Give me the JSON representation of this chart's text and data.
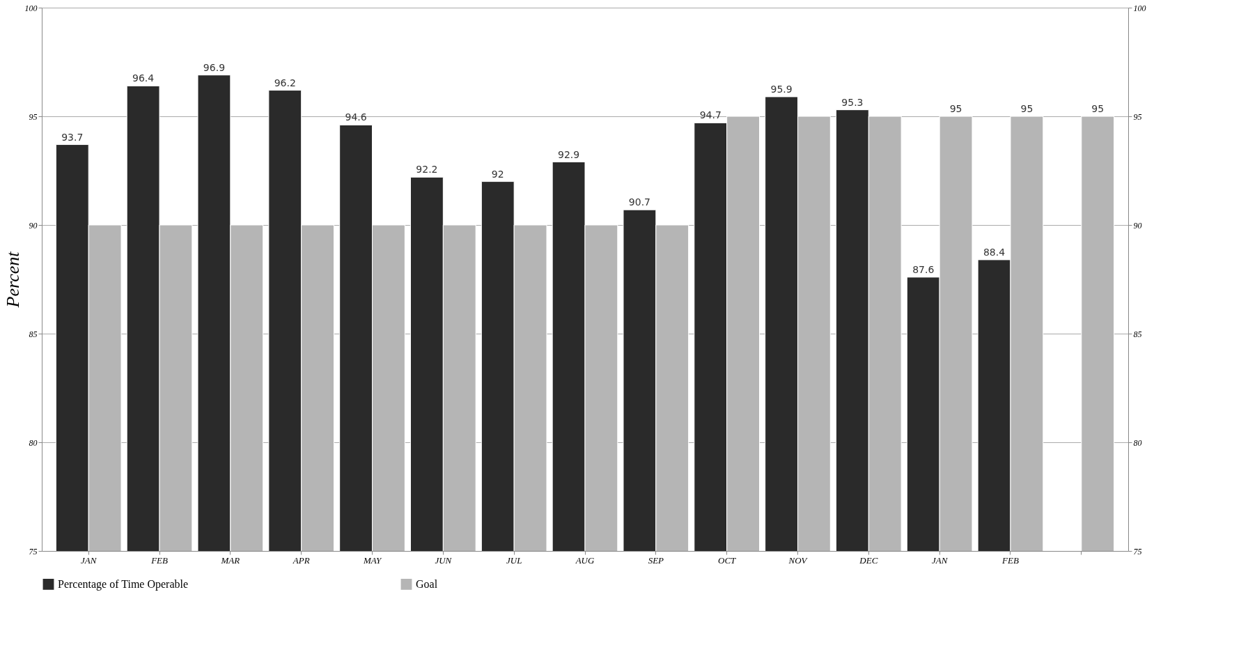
{
  "chart_data": {
    "type": "bar",
    "ylabel": "Percent",
    "categories": [
      "JAN",
      "FEB",
      "MAR",
      "APR",
      "MAY",
      "JUN",
      "JUL",
      "AUG",
      "SEP",
      "OCT",
      "NOV",
      "DEC",
      "JAN",
      "FEB",
      null
    ],
    "series": [
      {
        "name": "Percentage of Time Operable",
        "color": "#2a2a2a",
        "values": [
          93.7,
          96.4,
          96.9,
          96.2,
          94.6,
          92.2,
          92,
          92.9,
          90.7,
          94.7,
          95.9,
          95.3,
          87.6,
          88.4,
          null
        ],
        "value_labels": [
          "93.7",
          "96.4",
          "96.9",
          "96.2",
          "94.6",
          "92.2",
          "92",
          "92.9",
          "90.7",
          "94.7",
          "95.9",
          "95.3",
          "87.6",
          "88.4",
          null
        ]
      },
      {
        "name": "Goal",
        "color": "#b5b5b5",
        "axis": "y2",
        "values": [
          90,
          90,
          90,
          90,
          90,
          90,
          90,
          90,
          90,
          95,
          95,
          95,
          95,
          95,
          95
        ],
        "value_labels": [
          null,
          null,
          null,
          null,
          null,
          null,
          null,
          null,
          null,
          null,
          null,
          null,
          "95",
          "95",
          "95"
        ]
      }
    ],
    "ylim": [
      75,
      100
    ],
    "yticks": [
      75,
      80,
      85,
      90,
      95,
      100
    ],
    "y2lim": [
      75,
      100
    ],
    "y2ticks": [
      75,
      80,
      85,
      90,
      95,
      100
    ],
    "grid": "y",
    "legend": "bottom"
  }
}
